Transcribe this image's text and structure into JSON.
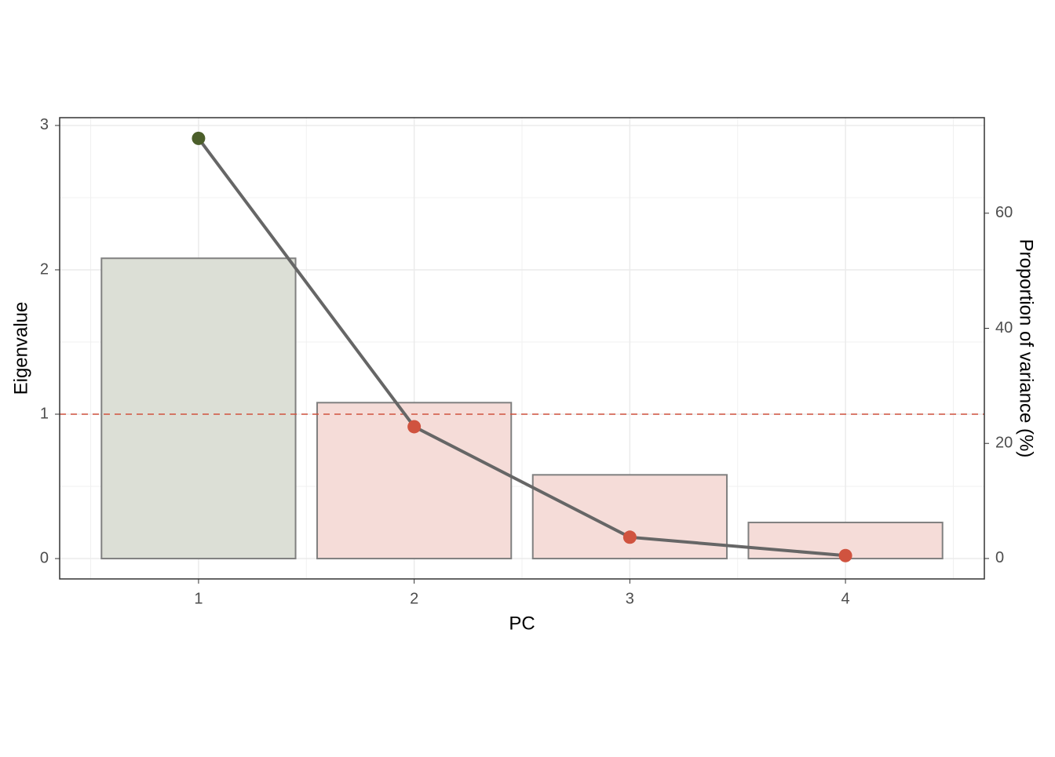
{
  "chart_data": {
    "type": "bar",
    "x_label": "PC",
    "y_label": "Eigenvalue",
    "y2_label": "Proportion of variance (%)",
    "categories": [
      "1",
      "2",
      "3",
      "4"
    ],
    "series": [
      {
        "type": "bar",
        "values": [
          2.08,
          1.08,
          0.58,
          0.25
        ],
        "colors": [
          "#dcdfd6",
          "#f5dcd8",
          "#f5dcd8",
          "#f5dcd8"
        ],
        "stroke": "#808080"
      },
      {
        "type": "line",
        "axis": "y2",
        "values": [
          73.0,
          22.9,
          3.7,
          0.5
        ],
        "color": "#666666",
        "point_colors": [
          "#4b5e2a",
          "#d0533f",
          "#d0533f",
          "#d0533f"
        ]
      }
    ],
    "hline": {
      "value": 1,
      "color": "#d0533f"
    },
    "ylim": [
      -0.141,
      3.054
    ],
    "yticks": [
      0,
      1,
      2,
      3
    ],
    "y2lim": [
      -3.55,
      76.6
    ],
    "y2ticks": [
      0,
      20,
      40,
      60
    ],
    "grid": true
  }
}
